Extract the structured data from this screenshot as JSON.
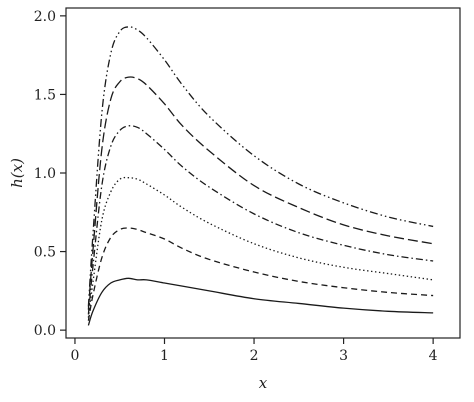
{
  "chart_data": {
    "type": "line",
    "title": "",
    "xlabel": "x",
    "ylabel": "h(x)",
    "xlim": [
      -0.1,
      4.3
    ],
    "ylim": [
      -0.05,
      2.05
    ],
    "x_ticks": [
      0,
      1,
      2,
      3,
      4
    ],
    "x_tick_labels": [
      "0",
      "1",
      "2",
      "3",
      "4"
    ],
    "y_ticks": [
      0.0,
      0.5,
      1.0,
      1.5,
      2.0
    ],
    "y_tick_labels": [
      "0.0",
      "0.5",
      "1.0",
      "1.5",
      "2.0"
    ],
    "grid": false,
    "legend": "none",
    "x": [
      0.15,
      0.2,
      0.3,
      0.4,
      0.5,
      0.6,
      0.7,
      0.8,
      1.0,
      1.2,
      1.5,
      2.0,
      2.5,
      3.0,
      3.5,
      4.0
    ],
    "series": [
      {
        "style": "solid",
        "values": [
          0.03,
          0.12,
          0.24,
          0.3,
          0.32,
          0.33,
          0.32,
          0.32,
          0.3,
          0.28,
          0.25,
          0.2,
          0.17,
          0.14,
          0.12,
          0.11
        ]
      },
      {
        "style": "dashed",
        "values": [
          0.06,
          0.22,
          0.46,
          0.59,
          0.64,
          0.65,
          0.64,
          0.62,
          0.58,
          0.52,
          0.45,
          0.37,
          0.31,
          0.27,
          0.24,
          0.22
        ]
      },
      {
        "style": "dotted",
        "values": [
          0.08,
          0.3,
          0.7,
          0.88,
          0.96,
          0.97,
          0.96,
          0.93,
          0.86,
          0.78,
          0.68,
          0.55,
          0.46,
          0.4,
          0.36,
          0.32
        ]
      },
      {
        "style": "dashdot",
        "values": [
          0.1,
          0.4,
          0.92,
          1.17,
          1.27,
          1.3,
          1.29,
          1.25,
          1.15,
          1.04,
          0.91,
          0.74,
          0.62,
          0.54,
          0.48,
          0.44
        ]
      },
      {
        "style": "longdash",
        "values": [
          0.13,
          0.5,
          1.15,
          1.47,
          1.58,
          1.61,
          1.6,
          1.56,
          1.44,
          1.3,
          1.14,
          0.92,
          0.78,
          0.67,
          0.6,
          0.55
        ]
      },
      {
        "style": "dashdotdot",
        "values": [
          0.15,
          0.6,
          1.38,
          1.76,
          1.9,
          1.93,
          1.91,
          1.86,
          1.72,
          1.56,
          1.36,
          1.11,
          0.93,
          0.81,
          0.72,
          0.66
        ]
      }
    ]
  }
}
